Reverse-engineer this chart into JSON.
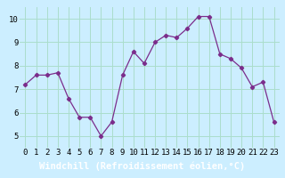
{
  "x": [
    0,
    1,
    2,
    3,
    4,
    5,
    6,
    7,
    8,
    9,
    10,
    11,
    12,
    13,
    14,
    15,
    16,
    17,
    18,
    19,
    20,
    21,
    22,
    23
  ],
  "y": [
    7.2,
    7.6,
    7.6,
    7.7,
    6.6,
    5.8,
    5.8,
    5.0,
    5.6,
    7.6,
    8.6,
    8.1,
    9.0,
    9.3,
    9.2,
    9.6,
    10.1,
    10.1,
    8.5,
    8.3,
    7.9,
    7.1,
    7.3,
    5.6
  ],
  "line_color": "#7b2d8b",
  "marker_color": "#7b2d8b",
  "bg_color": "#cceeff",
  "grid_color": "#aaddcc",
  "xlabel_bar_color": "#7b2d8b",
  "xlabel": "Windchill (Refroidissement éolien,°C)",
  "xlabel_color": "#ffffff",
  "xlim": [
    -0.5,
    23.5
  ],
  "ylim": [
    4.5,
    10.5
  ],
  "yticks": [
    5,
    6,
    7,
    8,
    9,
    10
  ],
  "xticks": [
    0,
    1,
    2,
    3,
    4,
    5,
    6,
    7,
    8,
    9,
    10,
    11,
    12,
    13,
    14,
    15,
    16,
    17,
    18,
    19,
    20,
    21,
    22,
    23
  ],
  "tick_fontsize": 6.5,
  "xlabel_fontsize": 7.5
}
